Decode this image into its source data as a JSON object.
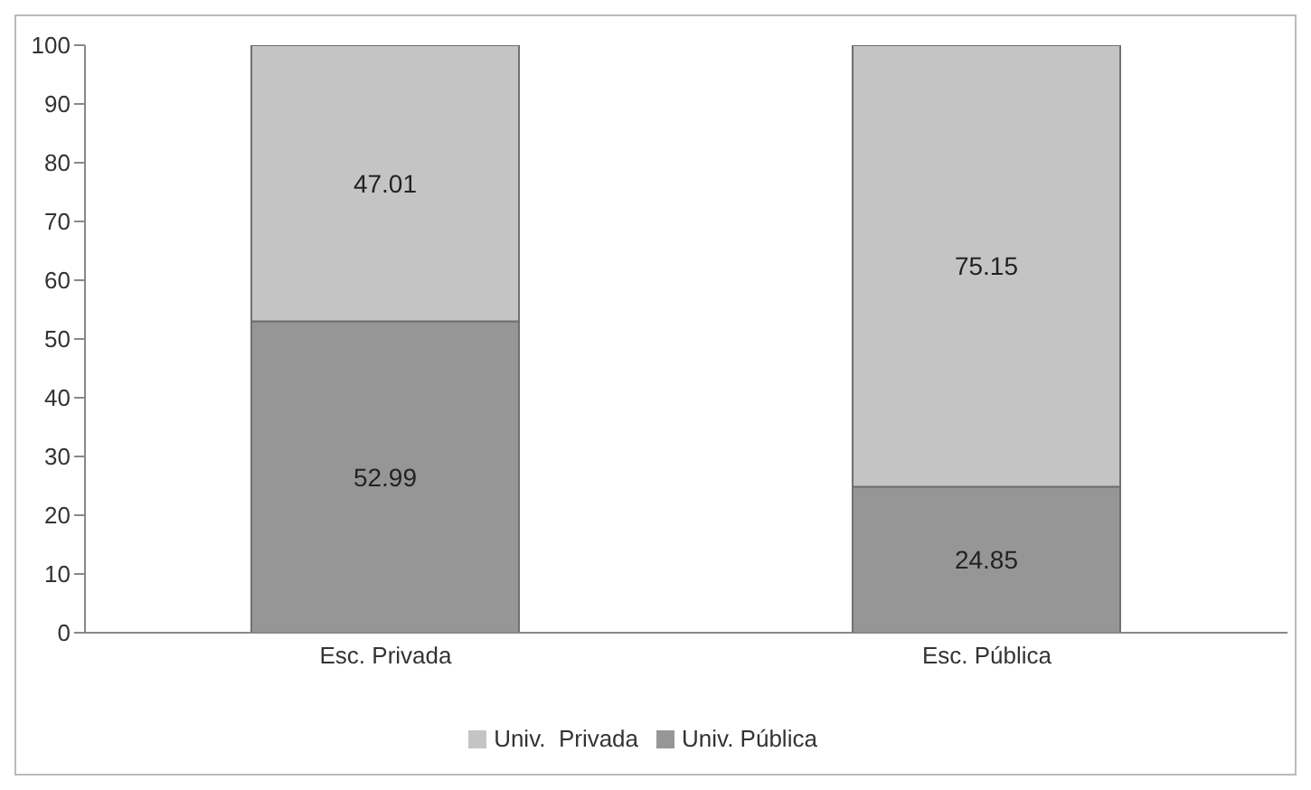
{
  "chart_data": {
    "type": "bar",
    "stacked": true,
    "categories": [
      "Esc. Privada",
      "Esc. Pública"
    ],
    "series": [
      {
        "name": "Univ. Pública",
        "color": "#969696",
        "values": [
          52.99,
          24.85
        ]
      },
      {
        "name": "Univ.  Privada",
        "color": "#c4c4c4",
        "values": [
          47.01,
          75.15
        ]
      }
    ],
    "ylim": [
      0,
      100
    ],
    "yticks": [
      0,
      10,
      20,
      30,
      40,
      50,
      60,
      70,
      80,
      90,
      100
    ],
    "grid": false,
    "legend": "bottom",
    "data_labels": true
  }
}
